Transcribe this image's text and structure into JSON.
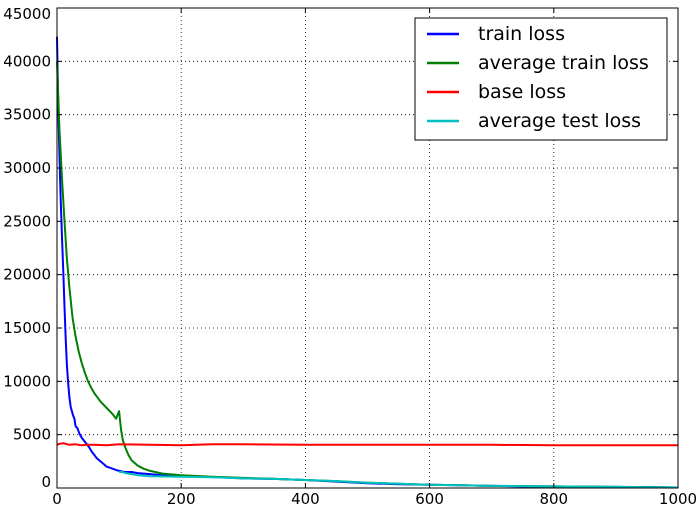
{
  "chart_data": {
    "type": "line",
    "title": "",
    "xlabel": "",
    "ylabel": "",
    "xlim": [
      0,
      1000
    ],
    "ylim": [
      0,
      45000
    ],
    "x_ticks": [
      0,
      200,
      400,
      600,
      800,
      1000
    ],
    "y_ticks": [
      0,
      5000,
      10000,
      15000,
      20000,
      25000,
      30000,
      35000,
      40000,
      45000
    ],
    "x_tick_labels": [
      "0",
      "200",
      "400",
      "600",
      "800",
      "1000"
    ],
    "y_tick_labels": [
      "0",
      "5000",
      "10000",
      "15000",
      "20000",
      "25000",
      "30000",
      "35000",
      "40000",
      "45000"
    ],
    "grid": true,
    "legend_position": "top-right",
    "series": [
      {
        "name": "train loss",
        "color": "#0000ff",
        "points": [
          [
            0,
            42300
          ],
          [
            2,
            36000
          ],
          [
            4,
            31000
          ],
          [
            6,
            27000
          ],
          [
            8,
            23500
          ],
          [
            10,
            20500
          ],
          [
            12,
            17000
          ],
          [
            14,
            14000
          ],
          [
            16,
            11500
          ],
          [
            18,
            9800
          ],
          [
            20,
            8500
          ],
          [
            22,
            7600
          ],
          [
            24,
            7200
          ],
          [
            26,
            6800
          ],
          [
            28,
            6500
          ],
          [
            30,
            5800
          ],
          [
            33,
            5600
          ],
          [
            36,
            5100
          ],
          [
            40,
            4700
          ],
          [
            44,
            4400
          ],
          [
            48,
            4100
          ],
          [
            52,
            3800
          ],
          [
            56,
            3400
          ],
          [
            60,
            3100
          ],
          [
            64,
            2800
          ],
          [
            68,
            2600
          ],
          [
            72,
            2400
          ],
          [
            76,
            2200
          ],
          [
            80,
            2000
          ],
          [
            85,
            1900
          ],
          [
            90,
            1800
          ],
          [
            95,
            1700
          ],
          [
            100,
            1600
          ],
          [
            105,
            1550
          ],
          [
            110,
            1500
          ],
          [
            120,
            1500
          ],
          [
            130,
            1400
          ],
          [
            140,
            1350
          ],
          [
            150,
            1300
          ],
          [
            170,
            1200
          ],
          [
            200,
            1100
          ],
          [
            230,
            1050
          ],
          [
            260,
            1000
          ],
          [
            300,
            900
          ],
          [
            350,
            850
          ],
          [
            400,
            750
          ],
          [
            450,
            600
          ],
          [
            500,
            450
          ],
          [
            550,
            350
          ],
          [
            600,
            300
          ],
          [
            650,
            250
          ],
          [
            700,
            200
          ],
          [
            750,
            150
          ],
          [
            800,
            150
          ],
          [
            850,
            120
          ],
          [
            900,
            100
          ],
          [
            950,
            80
          ],
          [
            1000,
            50
          ]
        ]
      },
      {
        "name": "average train loss",
        "color": "#008000",
        "points": [
          [
            0,
            40000
          ],
          [
            4,
            33500
          ],
          [
            8,
            29000
          ],
          [
            12,
            25000
          ],
          [
            16,
            21500
          ],
          [
            20,
            18800
          ],
          [
            25,
            16000
          ],
          [
            30,
            14200
          ],
          [
            35,
            12800
          ],
          [
            40,
            11700
          ],
          [
            45,
            10800
          ],
          [
            50,
            10000
          ],
          [
            55,
            9400
          ],
          [
            60,
            8900
          ],
          [
            65,
            8500
          ],
          [
            70,
            8100
          ],
          [
            75,
            7800
          ],
          [
            80,
            7500
          ],
          [
            85,
            7200
          ],
          [
            90,
            6900
          ],
          [
            95,
            6500
          ],
          [
            100,
            7200
          ],
          [
            103,
            5500
          ],
          [
            106,
            4500
          ],
          [
            110,
            3800
          ],
          [
            115,
            3100
          ],
          [
            120,
            2600
          ],
          [
            130,
            2100
          ],
          [
            140,
            1800
          ],
          [
            150,
            1600
          ],
          [
            170,
            1350
          ],
          [
            200,
            1200
          ],
          [
            250,
            1050
          ],
          [
            300,
            950
          ],
          [
            350,
            850
          ],
          [
            400,
            750
          ],
          [
            450,
            650
          ],
          [
            500,
            500
          ],
          [
            550,
            400
          ],
          [
            600,
            300
          ],
          [
            650,
            250
          ],
          [
            700,
            200
          ],
          [
            800,
            150
          ],
          [
            900,
            100
          ],
          [
            1000,
            50
          ]
        ]
      },
      {
        "name": "base loss",
        "color": "#ff0000",
        "points": [
          [
            0,
            4050
          ],
          [
            5,
            4150
          ],
          [
            10,
            4200
          ],
          [
            20,
            4050
          ],
          [
            30,
            4100
          ],
          [
            40,
            4000
          ],
          [
            50,
            4050
          ],
          [
            60,
            4050
          ],
          [
            80,
            4000
          ],
          [
            100,
            4100
          ],
          [
            150,
            4050
          ],
          [
            200,
            4000
          ],
          [
            250,
            4100
          ],
          [
            300,
            4100
          ],
          [
            400,
            4050
          ],
          [
            500,
            4050
          ],
          [
            600,
            4050
          ],
          [
            700,
            4050
          ],
          [
            800,
            4000
          ],
          [
            900,
            4000
          ],
          [
            1000,
            4000
          ]
        ]
      },
      {
        "name": "average test loss",
        "color": "#00bfbf",
        "points": [
          [
            100,
            1500
          ],
          [
            105,
            1500
          ],
          [
            110,
            1400
          ],
          [
            120,
            1300
          ],
          [
            130,
            1200
          ],
          [
            140,
            1150
          ],
          [
            150,
            1100
          ],
          [
            200,
            1050
          ],
          [
            250,
            1000
          ],
          [
            300,
            900
          ],
          [
            350,
            850
          ],
          [
            400,
            750
          ],
          [
            450,
            650
          ],
          [
            500,
            500
          ],
          [
            550,
            400
          ],
          [
            600,
            300
          ],
          [
            650,
            250
          ],
          [
            700,
            200
          ],
          [
            800,
            150
          ],
          [
            900,
            100
          ],
          [
            1000,
            50
          ]
        ]
      }
    ]
  }
}
